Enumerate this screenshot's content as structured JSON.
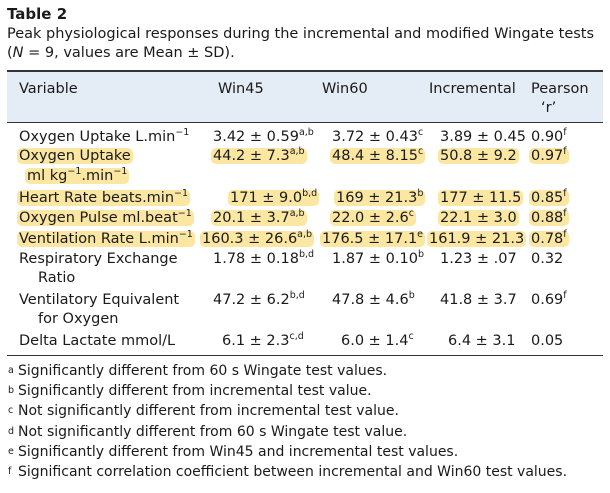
{
  "table_label": "Table 2",
  "caption": {
    "line1": "Peak physiological responses during the incremental and modified Wingate tests",
    "line2_pre": "(",
    "n_symbol": "N",
    "line2_post": " = 9, values are Mean ± SD)."
  },
  "headers": {
    "variable": "Variable",
    "win45": "Win45",
    "win60": "Win60",
    "incremental": "Incremental",
    "pearson": "Pearson",
    "pearson_r": "‘r’"
  },
  "rows": [
    {
      "variable_lines": [
        "Oxygen Uptake L.min",
        ""
      ],
      "variable_sup": "−1",
      "win45": "3.42 ± 0.59",
      "win45_sup": "a,b",
      "win60": "3.72 ± 0.43",
      "win60_sup": "c",
      "incremental": "3.89 ± 0.45",
      "pearson": "0.90",
      "pearson_sup": "f"
    },
    {
      "variable_line1": "Oxygen Uptake",
      "variable_line2_pre": "ml kg",
      "variable_line2_sup1": "−1",
      "variable_line2_mid": ".min",
      "variable_line2_sup2": "−1",
      "win45": "44.2 ± 7.3",
      "win45_sup": "a,b",
      "win60": "48.4 ± 8.15",
      "win60_sup": "c",
      "incremental": "50.8 ± 9.2",
      "pearson": "0.97",
      "pearson_sup": "f"
    },
    {
      "variable": "Heart Rate beats.min",
      "variable_sup": "−1",
      "win45": "171 ± 9.0",
      "win45_sup": "b,d",
      "win60": "169 ± 21.3",
      "win60_sup": "b",
      "incremental": "177 ± 11.5",
      "pearson": "0.85",
      "pearson_sup": "f"
    },
    {
      "variable": "Oxygen Pulse ml.beat",
      "variable_sup": "−1",
      "win45": "20.1 ± 3.7",
      "win45_sup": "a,b",
      "win60": "22.0 ± 2.6",
      "win60_sup": "c",
      "incremental": "22.1 ± 3.0",
      "pearson": "0.88",
      "pearson_sup": "f"
    },
    {
      "variable": "Ventilation Rate L.min",
      "variable_sup": "−1",
      "win45": "160.3 ± 26.6",
      "win45_sup": "a,b",
      "win60": "176.5 ± 17.1",
      "win60_sup": "e",
      "incremental": "161.9 ± 21.3",
      "pearson": "0.78",
      "pearson_sup": "f"
    },
    {
      "variable_line1": "Respiratory Exchange",
      "variable_line2": "Ratio",
      "win45": "1.78 ± 0.18",
      "win45_sup": "b,d",
      "win60": "1.87 ± 0.10",
      "win60_sup": "b",
      "incremental": "1.23 ± .07",
      "pearson": "0.32"
    },
    {
      "variable_line1": "Ventilatory Equivalent",
      "variable_line2": "for Oxygen",
      "win45": "47.2 ± 6.2",
      "win45_sup": "b,d",
      "win60": "47.8 ± 4.6",
      "win60_sup": "b",
      "incremental": "41.8 ± 3.7",
      "pearson": "0.69",
      "pearson_sup": "f"
    },
    {
      "variable": "Delta Lactate mmol/L",
      "win45": "6.1 ± 2.3",
      "win45_sup": "c,d",
      "win60": "6.0 ± 1.4",
      "win60_sup": "c",
      "incremental": "6.4 ± 3.1",
      "pearson": "0.05"
    }
  ],
  "footnotes": [
    {
      "mark": "a",
      "text": "Significantly different from 60 s Wingate test values."
    },
    {
      "mark": "b",
      "text": "Significantly different from incremental test value."
    },
    {
      "mark": "c",
      "text": "Not significantly different from incremental test value."
    },
    {
      "mark": "d",
      "text": "Not significantly different from 60 s Wingate test value."
    },
    {
      "mark": "e",
      "text": "Significantly different from Win45 and incremental test values."
    },
    {
      "mark": "f",
      "text": "Significant correlation coefficient between incremental and Win60 test values."
    }
  ]
}
